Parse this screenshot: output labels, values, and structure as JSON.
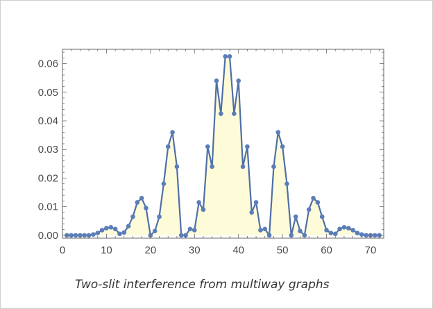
{
  "caption": "Two-slit interference from multiway graphs",
  "colors": {
    "line": "#4f6fa8",
    "marker": "#5b7db8",
    "fill": "#fdfbd8",
    "axis": "#666666"
  },
  "chart_data": {
    "type": "line",
    "filled": true,
    "title": "",
    "xlabel": "",
    "ylabel": "",
    "xlim": [
      0,
      73
    ],
    "ylim": [
      -0.001,
      0.065
    ],
    "x_ticks": [
      0,
      10,
      20,
      30,
      40,
      50,
      60,
      70
    ],
    "y_ticks": [
      0.0,
      0.01,
      0.02,
      0.03,
      0.04,
      0.05,
      0.06
    ],
    "y_tick_labels": [
      "0.00",
      "0.01",
      "0.02",
      "0.03",
      "0.04",
      "0.05",
      "0.06"
    ],
    "x": [
      1,
      2,
      3,
      4,
      5,
      6,
      7,
      8,
      9,
      10,
      11,
      12,
      13,
      14,
      15,
      16,
      17,
      18,
      19,
      20,
      21,
      22,
      23,
      24,
      25,
      26,
      27,
      28,
      29,
      30,
      31,
      32,
      33,
      34,
      35,
      36,
      37,
      38,
      39,
      40,
      41,
      42,
      43,
      44,
      45,
      46,
      47,
      48,
      49,
      50,
      51,
      52,
      53,
      54,
      55,
      56,
      57,
      58,
      59,
      60,
      61,
      62,
      63,
      64,
      65,
      66,
      67,
      68,
      69,
      70,
      71,
      72
    ],
    "y": [
      0.0,
      0.0,
      0.0,
      0.0,
      0.0,
      0.0,
      0.0003,
      0.0008,
      0.0018,
      0.0025,
      0.0028,
      0.0022,
      0.0005,
      0.001,
      0.0032,
      0.0065,
      0.0115,
      0.013,
      0.0095,
      0.0,
      0.0015,
      0.0065,
      0.018,
      0.031,
      0.036,
      0.024,
      0.0,
      0.0,
      0.0022,
      0.0018,
      0.0115,
      0.009,
      0.031,
      0.024,
      0.054,
      0.0425,
      0.0625,
      0.0625,
      0.0425,
      0.054,
      0.024,
      0.031,
      0.008,
      0.0115,
      0.0018,
      0.0022,
      0.0,
      0.024,
      0.036,
      0.031,
      0.018,
      0.0,
      0.0065,
      0.0015,
      0.0,
      0.009,
      0.013,
      0.0115,
      0.0065,
      0.0018,
      0.0008,
      0.0005,
      0.0022,
      0.0028,
      0.0025,
      0.0018,
      0.0008,
      0.0003,
      0.0,
      0.0,
      0.0,
      0.0
    ],
    "grid": false,
    "legend": "none"
  }
}
